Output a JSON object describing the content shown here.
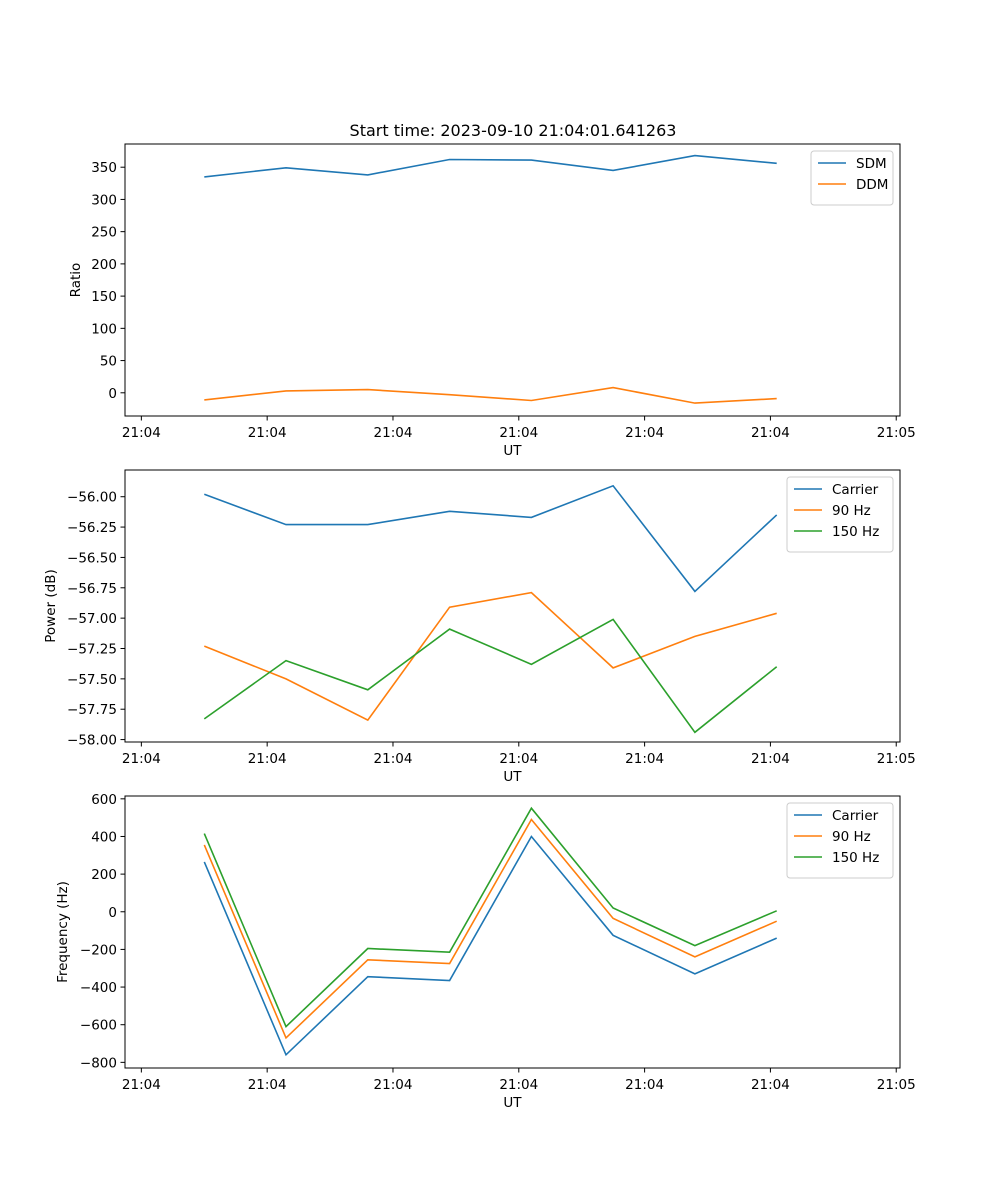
{
  "figure": {
    "title": "Start time: 2023-09-10 21:04:01.641263"
  },
  "colors": {
    "blue": "#1f77b4",
    "orange": "#ff7f0e",
    "green": "#2ca02c"
  },
  "chart_data": [
    {
      "type": "line",
      "title": "Start time: 2023-09-10 21:04:01.641263",
      "xlabel": "UT",
      "ylabel": "Ratio",
      "x_ticks": [
        0,
        1,
        2,
        3,
        4,
        5,
        6
      ],
      "x_tick_labels": [
        "21:04",
        "21:04",
        "21:04",
        "21:04",
        "21:04",
        "21:04",
        "21:05"
      ],
      "xlim": [
        -0.13,
        6.03
      ],
      "ylim": [
        -36,
        386
      ],
      "y_ticks": [
        0,
        50,
        100,
        150,
        200,
        250,
        300,
        350
      ],
      "legend_loc": "upper right",
      "x": [
        0.5,
        1.15,
        1.8,
        2.45,
        3.1,
        3.75,
        4.4,
        5.05
      ],
      "series": [
        {
          "name": "SDM",
          "color": "blue",
          "values": [
            335,
            349,
            338,
            362,
            361,
            345,
            368,
            356
          ]
        },
        {
          "name": "DDM",
          "color": "orange",
          "values": [
            -11,
            3,
            5,
            -3,
            -12,
            8,
            -16,
            -9
          ]
        }
      ]
    },
    {
      "type": "line",
      "xlabel": "UT",
      "ylabel": "Power (dB)",
      "x_ticks": [
        0,
        1,
        2,
        3,
        4,
        5,
        6
      ],
      "x_tick_labels": [
        "21:04",
        "21:04",
        "21:04",
        "21:04",
        "21:04",
        "21:04",
        "21:05"
      ],
      "xlim": [
        -0.13,
        6.03
      ],
      "ylim": [
        -58.02,
        -55.78
      ],
      "y_ticks": [
        -58.0,
        -57.75,
        -57.5,
        -57.25,
        -57.0,
        -56.75,
        -56.5,
        -56.25,
        -56.0
      ],
      "y_tick_labels": [
        "−58.00",
        "−57.75",
        "−57.50",
        "−57.25",
        "−57.00",
        "−56.75",
        "−56.50",
        "−56.25",
        "−56.00"
      ],
      "legend_loc": "upper right",
      "x": [
        0.5,
        1.15,
        1.8,
        2.45,
        3.1,
        3.75,
        4.4,
        5.05
      ],
      "series": [
        {
          "name": "Carrier",
          "color": "blue",
          "values": [
            -55.98,
            -56.23,
            -56.23,
            -56.12,
            -56.17,
            -55.91,
            -56.78,
            -56.15
          ]
        },
        {
          "name": "90 Hz",
          "color": "orange",
          "values": [
            -57.23,
            -57.5,
            -57.84,
            -56.91,
            -56.79,
            -57.41,
            -57.15,
            -56.96
          ]
        },
        {
          "name": "150 Hz",
          "color": "green",
          "values": [
            -57.83,
            -57.35,
            -57.59,
            -57.09,
            -57.38,
            -57.01,
            -57.94,
            -57.4
          ]
        }
      ]
    },
    {
      "type": "line",
      "xlabel": "UT",
      "ylabel": "Frequency (Hz)",
      "x_ticks": [
        0,
        1,
        2,
        3,
        4,
        5,
        6
      ],
      "x_tick_labels": [
        "21:04",
        "21:04",
        "21:04",
        "21:04",
        "21:04",
        "21:04",
        "21:05"
      ],
      "xlim": [
        -0.13,
        6.03
      ],
      "ylim": [
        -830,
        615
      ],
      "y_ticks": [
        -800,
        -600,
        -400,
        -200,
        0,
        200,
        400,
        600
      ],
      "y_tick_labels": [
        "−800",
        "−600",
        "−400",
        "−200",
        "0",
        "200",
        "400",
        "600"
      ],
      "legend_loc": "upper right",
      "x": [
        0.5,
        1.15,
        1.8,
        2.45,
        3.1,
        3.75,
        4.4,
        5.05
      ],
      "series": [
        {
          "name": "Carrier",
          "color": "blue",
          "values": [
            265,
            -760,
            -345,
            -365,
            400,
            -125,
            -330,
            -140
          ]
        },
        {
          "name": "90 Hz",
          "color": "orange",
          "values": [
            355,
            -670,
            -255,
            -275,
            490,
            -35,
            -240,
            -50
          ]
        },
        {
          "name": "150 Hz",
          "color": "green",
          "values": [
            415,
            -610,
            -195,
            -215,
            550,
            20,
            -180,
            5
          ]
        }
      ]
    }
  ]
}
